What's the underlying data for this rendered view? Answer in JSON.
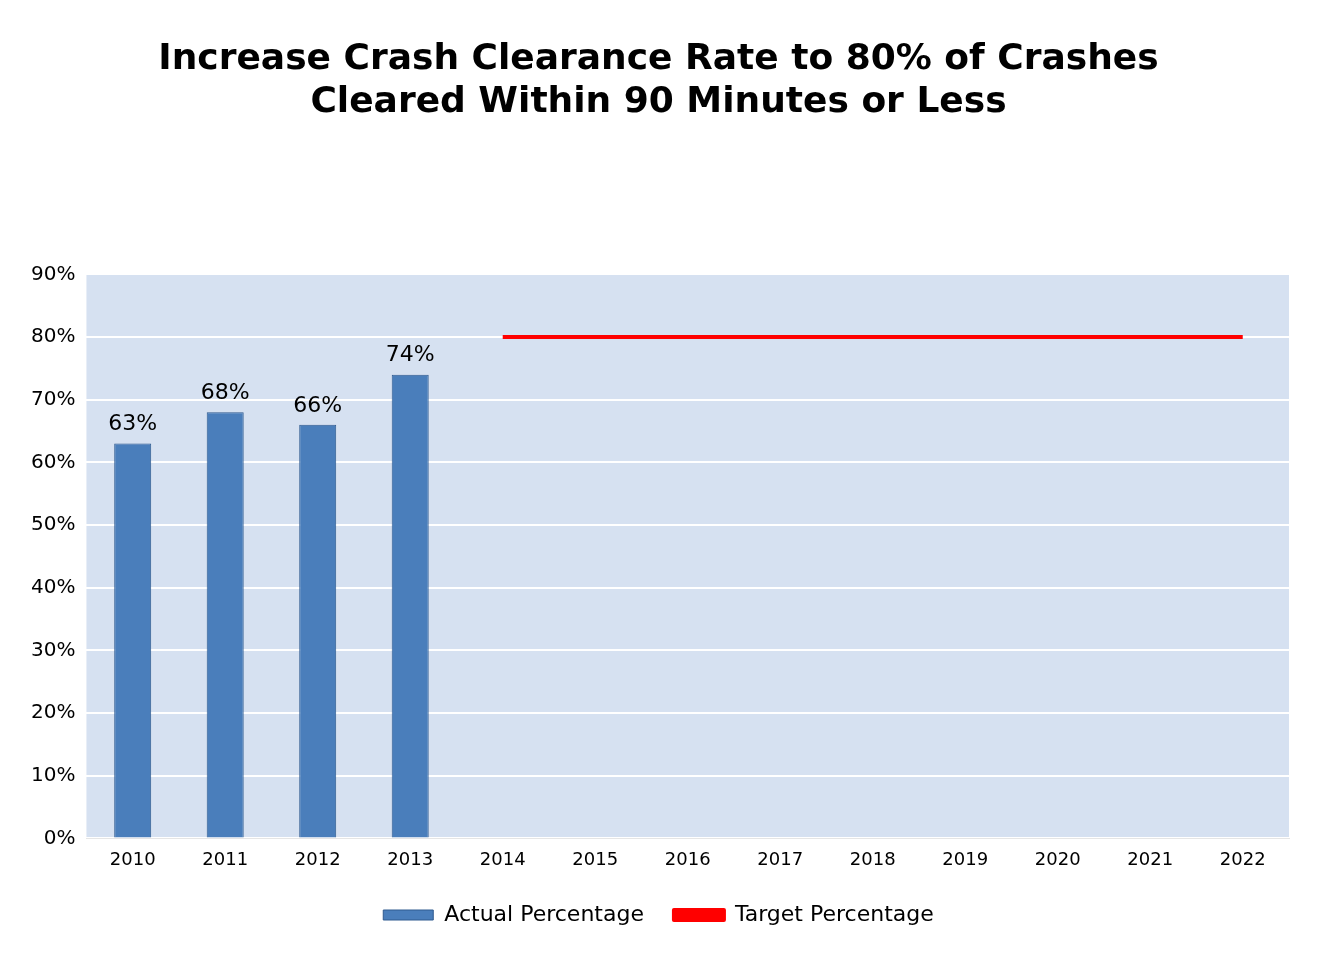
{
  "chart_data": {
    "type": "bar",
    "title": "Increase Crash Clearance Rate to 80% of Crashes\nCleared Within 90 Minutes or Less",
    "categories": [
      "2010",
      "2011",
      "2012",
      "2013",
      "2014",
      "2015",
      "2016",
      "2017",
      "2018",
      "2019",
      "2020",
      "2021",
      "2022"
    ],
    "series": [
      {
        "name": "Actual Percentage",
        "color": "#4a7ebb",
        "values": [
          63,
          68,
          66,
          74,
          null,
          null,
          null,
          null,
          null,
          null,
          null,
          null,
          null
        ],
        "value_labels": [
          "63%",
          "68%",
          "66%",
          "74%",
          null,
          null,
          null,
          null,
          null,
          null,
          null,
          null,
          null
        ]
      },
      {
        "name": "Target Percentage",
        "type": "line",
        "color": "#ff0000",
        "values": [
          null,
          null,
          null,
          null,
          80,
          80,
          80,
          80,
          80,
          80,
          80,
          80,
          80
        ]
      }
    ],
    "ylim": [
      0,
      90
    ],
    "yticks": [
      {
        "value": 0,
        "label": "0%"
      },
      {
        "value": 10,
        "label": "10%"
      },
      {
        "value": 20,
        "label": "20%"
      },
      {
        "value": 30,
        "label": "30%"
      },
      {
        "value": 40,
        "label": "40%"
      },
      {
        "value": 50,
        "label": "50%"
      },
      {
        "value": 60,
        "label": "60%"
      },
      {
        "value": 70,
        "label": "70%"
      },
      {
        "value": 80,
        "label": "80%"
      },
      {
        "value": 90,
        "label": "90%"
      }
    ],
    "grid": "y",
    "legend": "bottom",
    "marker": "none"
  }
}
